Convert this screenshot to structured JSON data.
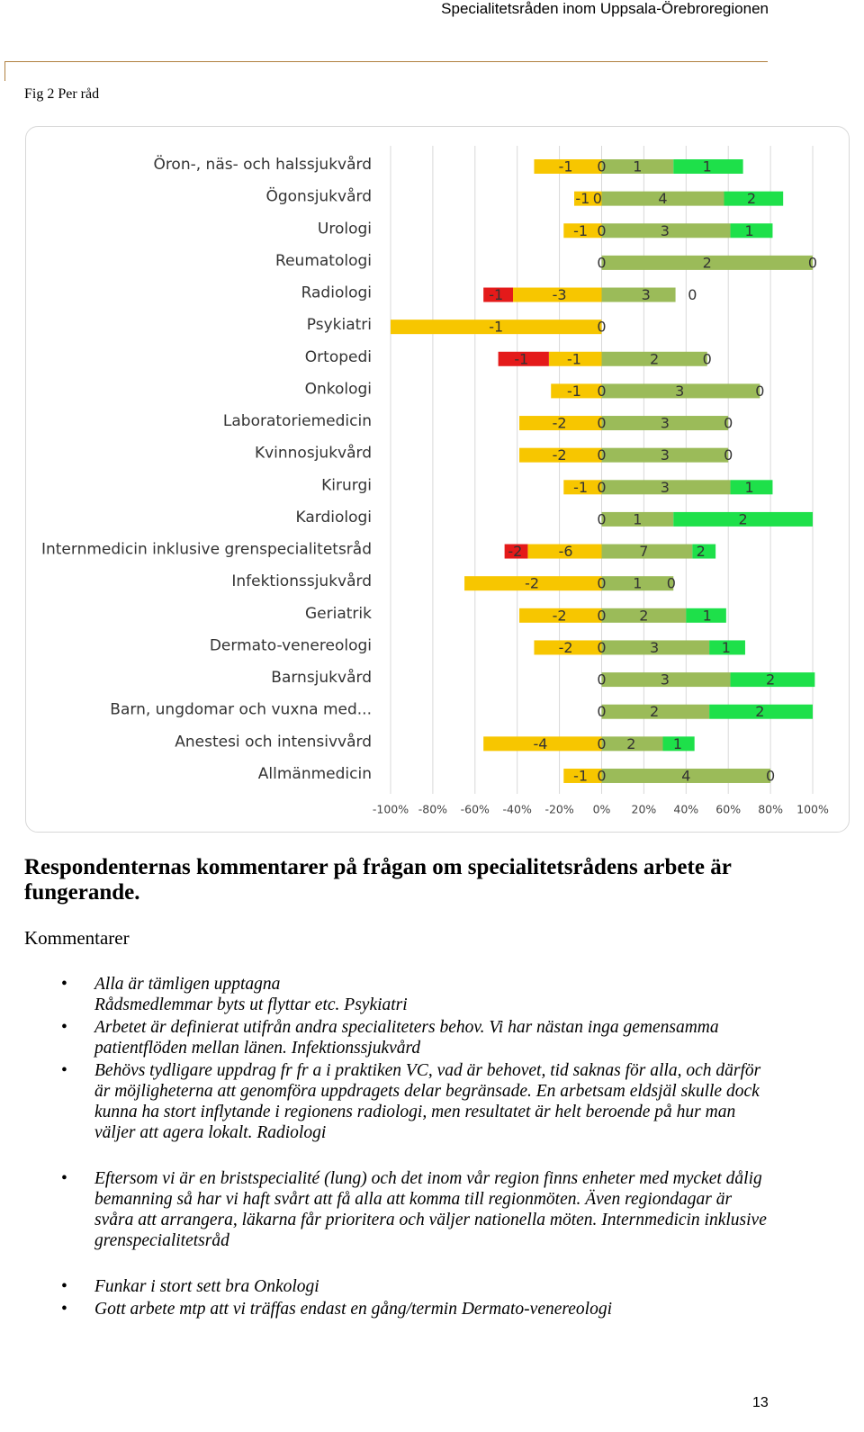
{
  "header": {
    "title": "Specialitetsråden inom Uppsala-Örebroregionen"
  },
  "caption": "Fig 2 Per råd",
  "chart_data": {
    "type": "bar",
    "orientation": "horizontal",
    "grid": true,
    "categories": [
      "Öron-, näs- och halssjukvård",
      "Ögonsjukvård",
      "Urologi",
      "Reumatologi",
      "Radiologi",
      "Psykiatri",
      "Ortopedi",
      "Onkologi",
      "Laboratoriemedicin",
      "Kvinnosjukvård",
      "Kirurgi",
      "Kardiologi",
      "Internmedicin inklusive grenspecialitetsråd",
      "Infektionssjukvård",
      "Geriatrik",
      "Dermato-venereologi",
      "Barnsjukvård",
      "Barn, ungdomar och vuxna med...",
      "Anestesi och intensivvård",
      "Allmänmedicin"
    ],
    "series": [
      {
        "color": "#e41a1a",
        "values": [
          null,
          null,
          null,
          null,
          -14,
          null,
          -24,
          null,
          null,
          null,
          null,
          null,
          -11,
          null,
          null,
          null,
          null,
          null,
          null,
          null
        ]
      },
      {
        "color": "#f7c600",
        "values": [
          -32,
          -13,
          -18,
          null,
          -42,
          -100,
          -25,
          -24,
          -39,
          -39,
          -18,
          null,
          -35,
          -65,
          -39,
          -32,
          null,
          null,
          -56,
          -18
        ]
      },
      {
        "color": "#9bbb59",
        "values": [
          34,
          58,
          61,
          100,
          35,
          null,
          50,
          75,
          60,
          60,
          61,
          34,
          43,
          34,
          40,
          51,
          61,
          51,
          29,
          80
        ]
      },
      {
        "color": "#1ee04a",
        "values": [
          33,
          28,
          20,
          null,
          null,
          null,
          null,
          null,
          null,
          null,
          20,
          66,
          11,
          null,
          19,
          17,
          40,
          49,
          15,
          null
        ]
      }
    ],
    "data_labels": [
      [
        {
          "value": -1,
          "at": -17
        },
        {
          "value": 0,
          "at": 0
        },
        {
          "value": 1,
          "at": 17
        },
        {
          "value": 1,
          "at": 50
        }
      ],
      [
        {
          "value": -1,
          "at": -9
        },
        {
          "value": 0,
          "at": -2
        },
        {
          "value": 4,
          "at": 29
        },
        {
          "value": 2,
          "at": 71
        }
      ],
      [
        {
          "value": -1,
          "at": -10
        },
        {
          "value": 0,
          "at": 0
        },
        {
          "value": 3,
          "at": 30
        },
        {
          "value": 1,
          "at": 70
        }
      ],
      [
        {
          "value": 0,
          "at": 0
        },
        {
          "value": 2,
          "at": 50
        },
        {
          "value": 0,
          "at": 100
        }
      ],
      [
        {
          "value": -1,
          "at": -50
        },
        {
          "value": -3,
          "at": -20
        },
        {
          "value": 3,
          "at": 21
        },
        {
          "value": 0,
          "at": 43
        }
      ],
      [
        {
          "value": -1,
          "at": -50
        },
        {
          "value": 0,
          "at": 0
        }
      ],
      [
        {
          "value": -1,
          "at": -38
        },
        {
          "value": -1,
          "at": -13
        },
        {
          "value": 2,
          "at": 25
        },
        {
          "value": 0,
          "at": 50
        }
      ],
      [
        {
          "value": -1,
          "at": -13
        },
        {
          "value": 0,
          "at": 0
        },
        {
          "value": 3,
          "at": 37
        },
        {
          "value": 0,
          "at": 75
        }
      ],
      [
        {
          "value": -2,
          "at": -20
        },
        {
          "value": 0,
          "at": 0
        },
        {
          "value": 3,
          "at": 30
        },
        {
          "value": 0,
          "at": 60
        }
      ],
      [
        {
          "value": -2,
          "at": -20
        },
        {
          "value": 0,
          "at": 0
        },
        {
          "value": 3,
          "at": 30
        },
        {
          "value": 0,
          "at": 60
        }
      ],
      [
        {
          "value": -1,
          "at": -10
        },
        {
          "value": 0,
          "at": 0
        },
        {
          "value": 3,
          "at": 30
        },
        {
          "value": 1,
          "at": 70
        }
      ],
      [
        {
          "value": 0,
          "at": 0
        },
        {
          "value": 1,
          "at": 17
        },
        {
          "value": 2,
          "at": 67
        }
      ],
      [
        {
          "value": -2,
          "at": -41
        },
        {
          "value": -6,
          "at": -17
        },
        {
          "value": 7,
          "at": 20
        },
        {
          "value": 2,
          "at": 47
        }
      ],
      [
        {
          "value": -2,
          "at": -33
        },
        {
          "value": 0,
          "at": 0
        },
        {
          "value": 1,
          "at": 17
        },
        {
          "value": 0,
          "at": 33
        }
      ],
      [
        {
          "value": -2,
          "at": -20
        },
        {
          "value": 0,
          "at": 0
        },
        {
          "value": 2,
          "at": 20
        },
        {
          "value": 1,
          "at": 50
        }
      ],
      [
        {
          "value": -2,
          "at": -17
        },
        {
          "value": 0,
          "at": 0
        },
        {
          "value": 3,
          "at": 25
        },
        {
          "value": 1,
          "at": 59
        }
      ],
      [
        {
          "value": 0,
          "at": 0
        },
        {
          "value": 3,
          "at": 30
        },
        {
          "value": 2,
          "at": 80
        }
      ],
      [
        {
          "value": 0,
          "at": 0
        },
        {
          "value": 2,
          "at": 25
        },
        {
          "value": 2,
          "at": 75
        }
      ],
      [
        {
          "value": -4,
          "at": -29
        },
        {
          "value": 0,
          "at": 0
        },
        {
          "value": 2,
          "at": 14
        },
        {
          "value": 1,
          "at": 36
        }
      ],
      [
        {
          "value": -1,
          "at": -10
        },
        {
          "value": 0,
          "at": 0
        },
        {
          "value": 4,
          "at": 40
        },
        {
          "value": 0,
          "at": 80
        }
      ]
    ],
    "xlim": [
      -100,
      100
    ],
    "xticks": [
      {
        "value": -100,
        "label": "-100%"
      },
      {
        "value": -80,
        "label": "-80%"
      },
      {
        "value": -60,
        "label": "-60%"
      },
      {
        "value": -40,
        "label": "-40%"
      },
      {
        "value": -20,
        "label": "-20%"
      },
      {
        "value": 0,
        "label": "0%"
      },
      {
        "value": 20,
        "label": "20%"
      },
      {
        "value": 40,
        "label": "40%"
      },
      {
        "value": 60,
        "label": "60%"
      },
      {
        "value": 80,
        "label": "80%"
      },
      {
        "value": 100,
        "label": "100%"
      }
    ]
  },
  "section": {
    "heading": "Respondenternas kommentarer på frågan om specialitetsrådens arbete är fungerande.",
    "subheading": "Kommentarer",
    "items": [
      [
        "Alla är tämligen upptagna",
        "Rådsmedlemmar byts ut flyttar etc. Psykiatri"
      ],
      [
        "Arbetet är definierat utifrån andra specialiteters behov. Vi har nästan inga gemensamma patientflöden mellan länen. Infektionssjukvård"
      ],
      [
        "Behövs tydligare uppdrag fr fr a i praktiken VC, vad är behovet, tid saknas för alla, och därför är möjligheterna att genomföra uppdragets delar begränsade. En arbetsam eldsjäl skulle dock kunna ha stort inflytande i regionens radiologi, men resultatet är helt beroende på hur man väljer att agera lokalt.  Radiologi"
      ],
      [
        "Eftersom vi är en bristspecialité (lung) och det inom vår region finns enheter med mycket dålig bemanning så har vi haft svårt att få alla att komma till regionmöten. Även regiondagar är svåra att arrangera, läkarna får prioritera och väljer nationella möten.  Internmedicin inklusive grenspecialitetsråd"
      ],
      [
        "Funkar i stort sett bra Onkologi"
      ],
      [
        "Gott arbete mtp att vi träffas endast en gång/termin Dermato-venereologi"
      ]
    ]
  },
  "page_number": 13
}
